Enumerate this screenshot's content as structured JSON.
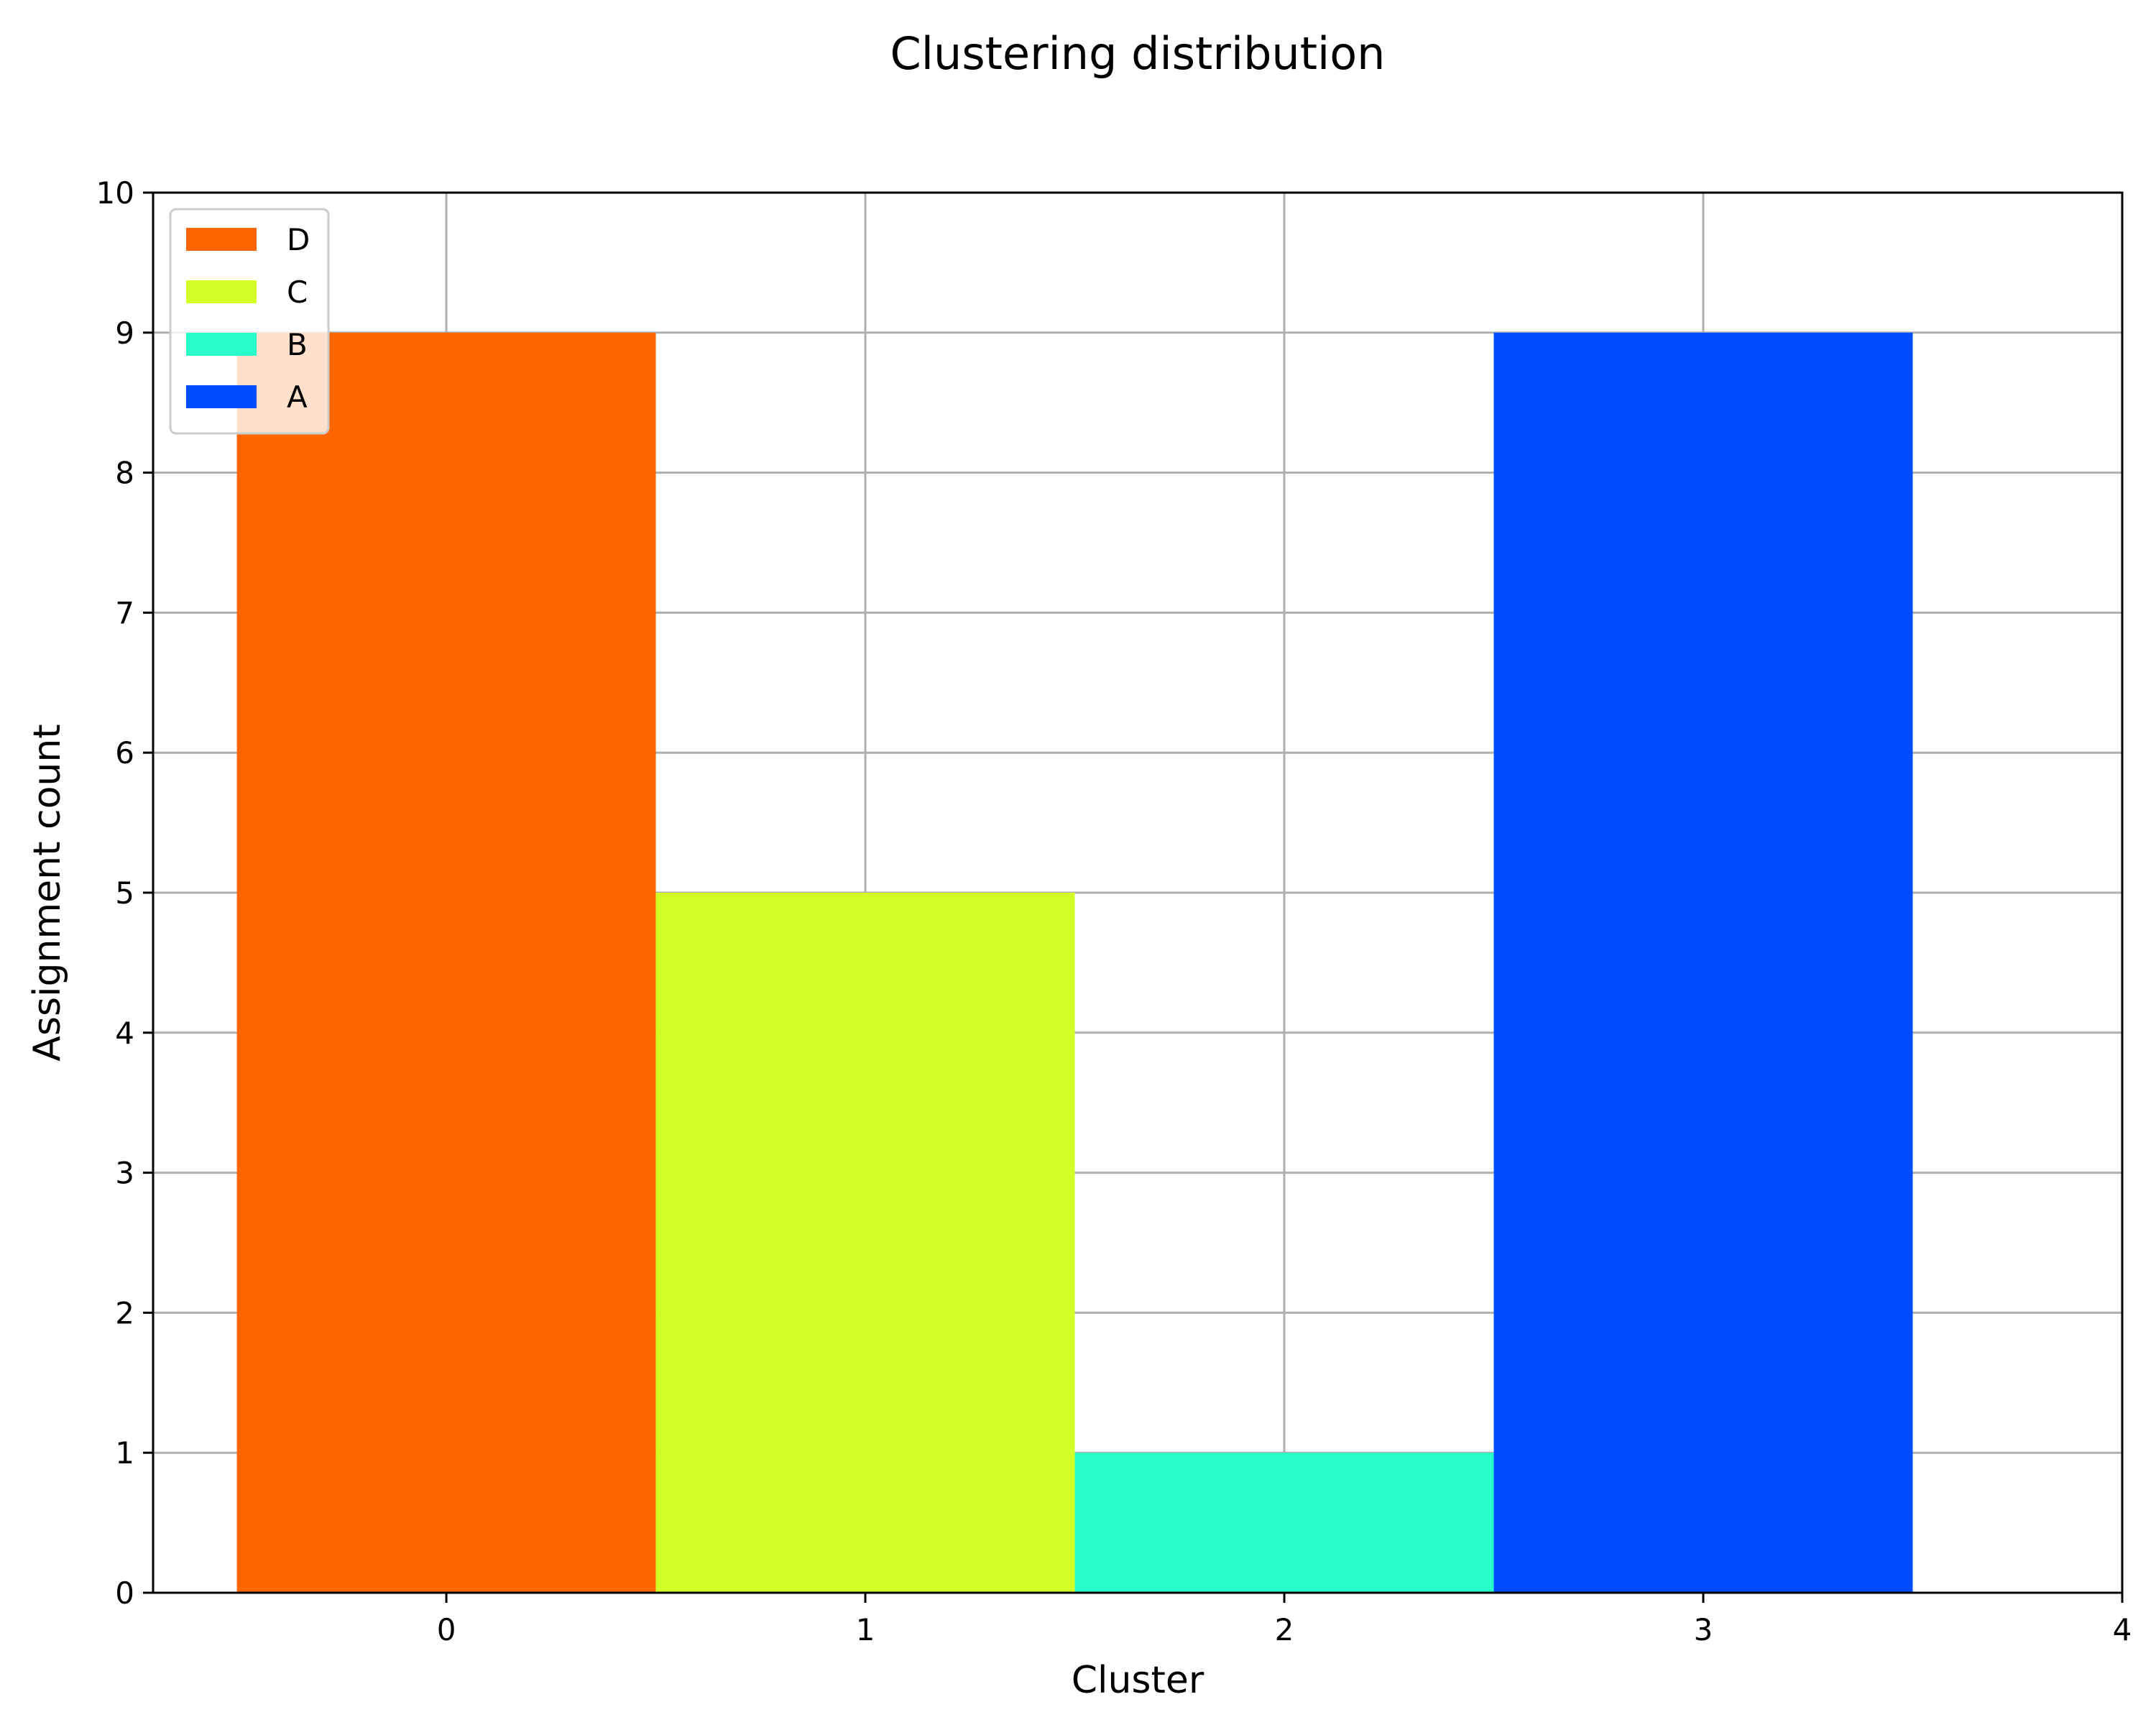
{
  "chart_data": {
    "type": "bar",
    "title": "Clustering distribution",
    "xlabel": "Cluster",
    "ylabel": "Assignment count",
    "categories": [
      "0",
      "1",
      "2",
      "3"
    ],
    "bars": [
      {
        "x": 0,
        "value": 9,
        "label": "D",
        "color": "#ff6600"
      },
      {
        "x": 1,
        "value": 5,
        "label": "C",
        "color": "#d1ff26"
      },
      {
        "x": 2,
        "value": 1,
        "label": "B",
        "color": "#29ffcb"
      },
      {
        "x": 3,
        "value": 9,
        "label": "A",
        "color": "#004cff"
      }
    ],
    "bar_width": 1.0,
    "xlim": [
      -0.7,
      4
    ],
    "ylim": [
      0,
      10
    ],
    "xticks": [
      0,
      1,
      2,
      3,
      4
    ],
    "yticks": [
      0,
      1,
      2,
      3,
      4,
      5,
      6,
      7,
      8,
      9,
      10
    ],
    "grid": true,
    "legend": {
      "position": "upper-left",
      "entries": [
        "D",
        "C",
        "B",
        "A"
      ]
    }
  }
}
